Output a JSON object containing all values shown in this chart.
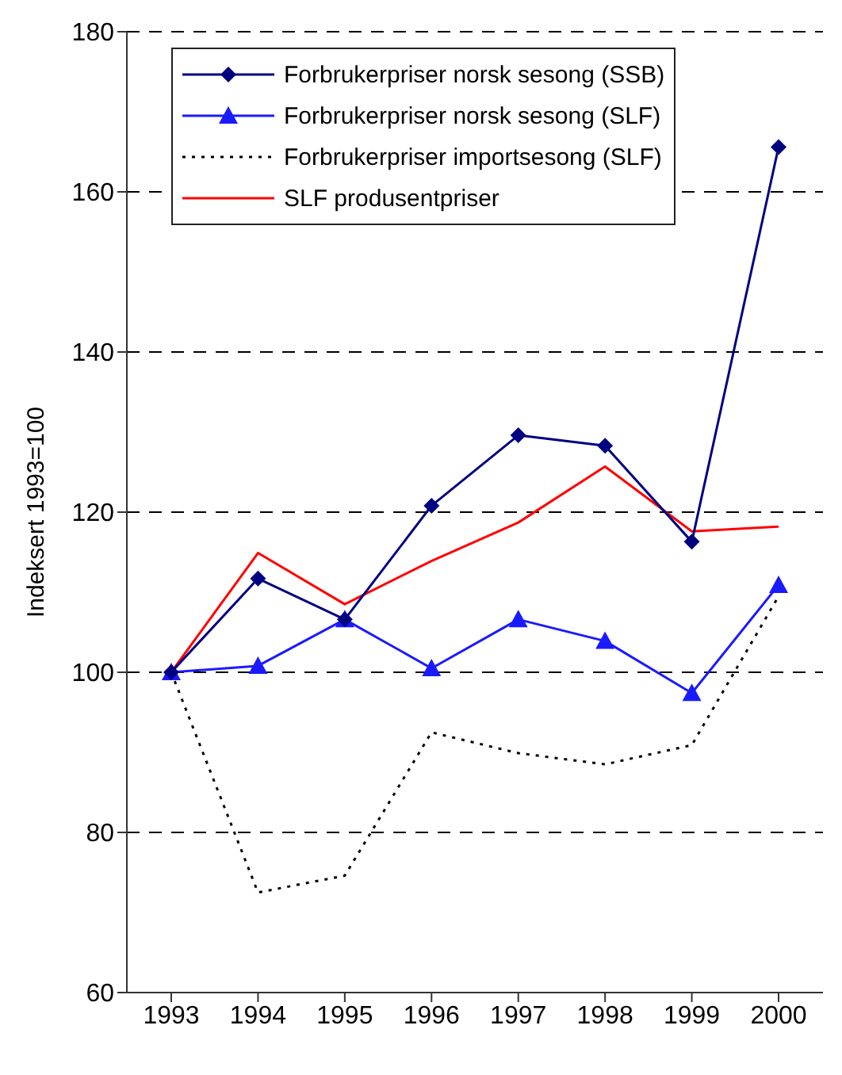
{
  "chart_data": {
    "type": "line",
    "ylabel": "Indeksert 1993=100",
    "categories": [
      "1993",
      "1994",
      "1995",
      "1996",
      "1997",
      "1998",
      "1999",
      "2000"
    ],
    "series": [
      {
        "name": "Forbrukerpriser norsk sesong (SSB)",
        "color": "#000080",
        "marker": "diamond",
        "line_style": "solid",
        "values": [
          100,
          111.7,
          106.6,
          120.8,
          129.6,
          128.3,
          116.3,
          165.6
        ]
      },
      {
        "name": "Forbrukerpriser norsk sesong (SLF)",
        "color": "#1a1aff",
        "marker": "triangle",
        "line_style": "solid",
        "values": [
          100,
          100.8,
          106.6,
          100.5,
          106.6,
          103.9,
          97.4,
          110.9
        ]
      },
      {
        "name": "Forbrukerpriser importsesong (SLF)",
        "color": "#000000",
        "marker": "none",
        "line_style": "dotted",
        "values": [
          100,
          72.5,
          74.6,
          92.5,
          89.9,
          88.5,
          90.9,
          109.5
        ]
      },
      {
        "name": "SLF produsentpriser",
        "color": "#ff0000",
        "marker": "none",
        "line_style": "solid",
        "values": [
          100,
          114.9,
          108.5,
          113.9,
          118.7,
          125.7,
          117.6,
          118.2
        ]
      }
    ],
    "ylim": [
      60,
      180
    ],
    "yticks": [
      60,
      80,
      100,
      120,
      140,
      160,
      180
    ],
    "grid": "y",
    "legend": "top left"
  }
}
